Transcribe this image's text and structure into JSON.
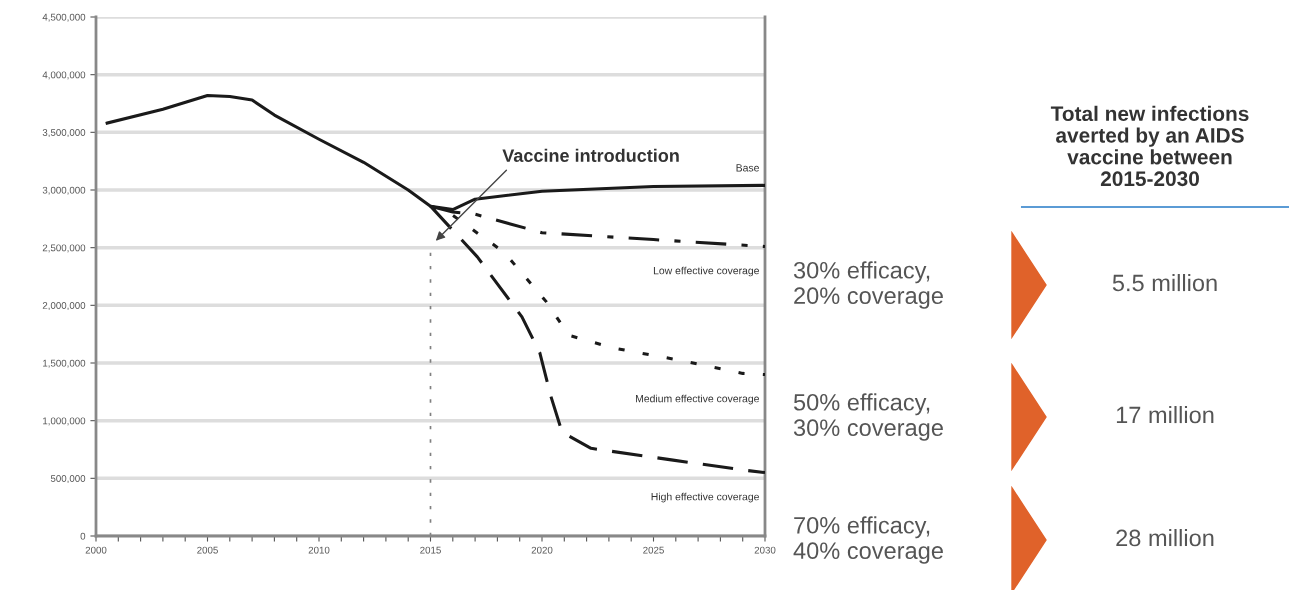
{
  "chart_data": [
    {
      "type": "line",
      "xlim": [
        2000,
        2030
      ],
      "ylim": [
        0,
        4500000
      ],
      "xticks": [
        2000,
        {
          "value": 2001,
          "label": null
        },
        {
          "value": 2002,
          "label": null
        },
        {
          "value": 2003,
          "label": null
        },
        {
          "value": 2004,
          "label": null
        },
        2005,
        {
          "value": 2006,
          "label": null
        },
        {
          "value": 2007,
          "label": null
        },
        {
          "value": 2008,
          "label": null
        },
        {
          "value": 2009,
          "label": null
        },
        2010,
        {
          "value": 2011,
          "label": null
        },
        {
          "value": 2012,
          "label": null
        },
        {
          "value": 2013,
          "label": null
        },
        {
          "value": 2014,
          "label": null
        },
        2015,
        {
          "value": 2016,
          "label": null
        },
        {
          "value": 2017,
          "label": null
        },
        {
          "value": 2018,
          "label": null
        },
        {
          "value": 2019,
          "label": null
        },
        2020,
        {
          "value": 2021,
          "label": null
        },
        {
          "value": 2022,
          "label": null
        },
        {
          "value": 2023,
          "label": null
        },
        {
          "value": 2024,
          "label": null
        },
        2025,
        {
          "value": 2026,
          "label": null
        },
        {
          "value": 2027,
          "label": null
        },
        {
          "value": 2028,
          "label": null
        },
        {
          "value": 2029,
          "label": null
        },
        2030
      ],
      "yticks": [
        {
          "value": 0,
          "label": "0"
        },
        {
          "value": 500000,
          "label": "500,000"
        },
        {
          "value": 1000000,
          "label": "1,000,000"
        },
        {
          "value": 1500000,
          "label": "1,500,000"
        },
        {
          "value": 2000000,
          "label": "2,000,000"
        },
        {
          "value": 2500000,
          "label": "2,500,000"
        },
        {
          "value": 3000000,
          "label": "3,000,000"
        },
        {
          "value": 3500000,
          "label": "3,500,000"
        },
        {
          "value": 4000000,
          "label": "4,000,000"
        },
        {
          "value": 4500000,
          "label": "4,500,000"
        }
      ],
      "grid": "y",
      "marker": "none",
      "series": [
        {
          "name": "Base",
          "color": "#1a1a1a",
          "line_style": "solid",
          "x": [
            2000.5,
            2003,
            2005,
            2006,
            2007,
            2008,
            2010,
            2012,
            2014,
            2015,
            2016,
            2017,
            2020,
            2025,
            2030
          ],
          "values": [
            3580000,
            3700000,
            3820000,
            3810000,
            3780000,
            3650000,
            3440000,
            3240000,
            3000000,
            2860000,
            2830000,
            2920000,
            2990000,
            3030000,
            3040000
          ]
        },
        {
          "name": "Low effective coverage",
          "color": "#1a1a1a",
          "line_style": "dashdot",
          "x": [
            2015,
            2016,
            2017,
            2020,
            2025,
            2030
          ],
          "values": [
            2860000,
            2810000,
            2790000,
            2630000,
            2570000,
            2510000
          ]
        },
        {
          "name": "Medium effective coverage",
          "color": "#1a1a1a",
          "line_style": "dotted",
          "x": [
            2015,
            2016,
            2018.3,
            2020.2,
            2021.2,
            2023.2,
            2026,
            2029,
            2030
          ],
          "values": [
            2860000,
            2780000,
            2460000,
            2030000,
            1740000,
            1630000,
            1530000,
            1410000,
            1400000
          ]
        },
        {
          "name": "High effective coverage",
          "color": "#1a1a1a",
          "line_style": "dashed",
          "x": [
            2015,
            2017.1,
            2019.1,
            2019.9,
            2020.4,
            2020.9,
            2022.2,
            2025.8,
            2029.1,
            2030
          ],
          "values": [
            2860000,
            2420000,
            1900000,
            1590000,
            1210000,
            900000,
            760000,
            660000,
            570000,
            550000
          ]
        }
      ],
      "ref_lines": [
        {
          "axis": "x",
          "value": 2015,
          "label": null,
          "line_style": "dotted",
          "color": "#808080"
        }
      ],
      "annotations": [
        "Vaccine introduction"
      ]
    },
    {
      "type": "other",
      "title": "Total new infections\naverted by an AIDS\nvaccine between\n2015-2030",
      "annotations": [
        "30% efficacy,\n20% coverage",
        "5.5 million",
        "50% efficacy,\n30% coverage",
        "17 million",
        "70% efficacy,\n40% coverage",
        "28 million"
      ]
    }
  ]
}
